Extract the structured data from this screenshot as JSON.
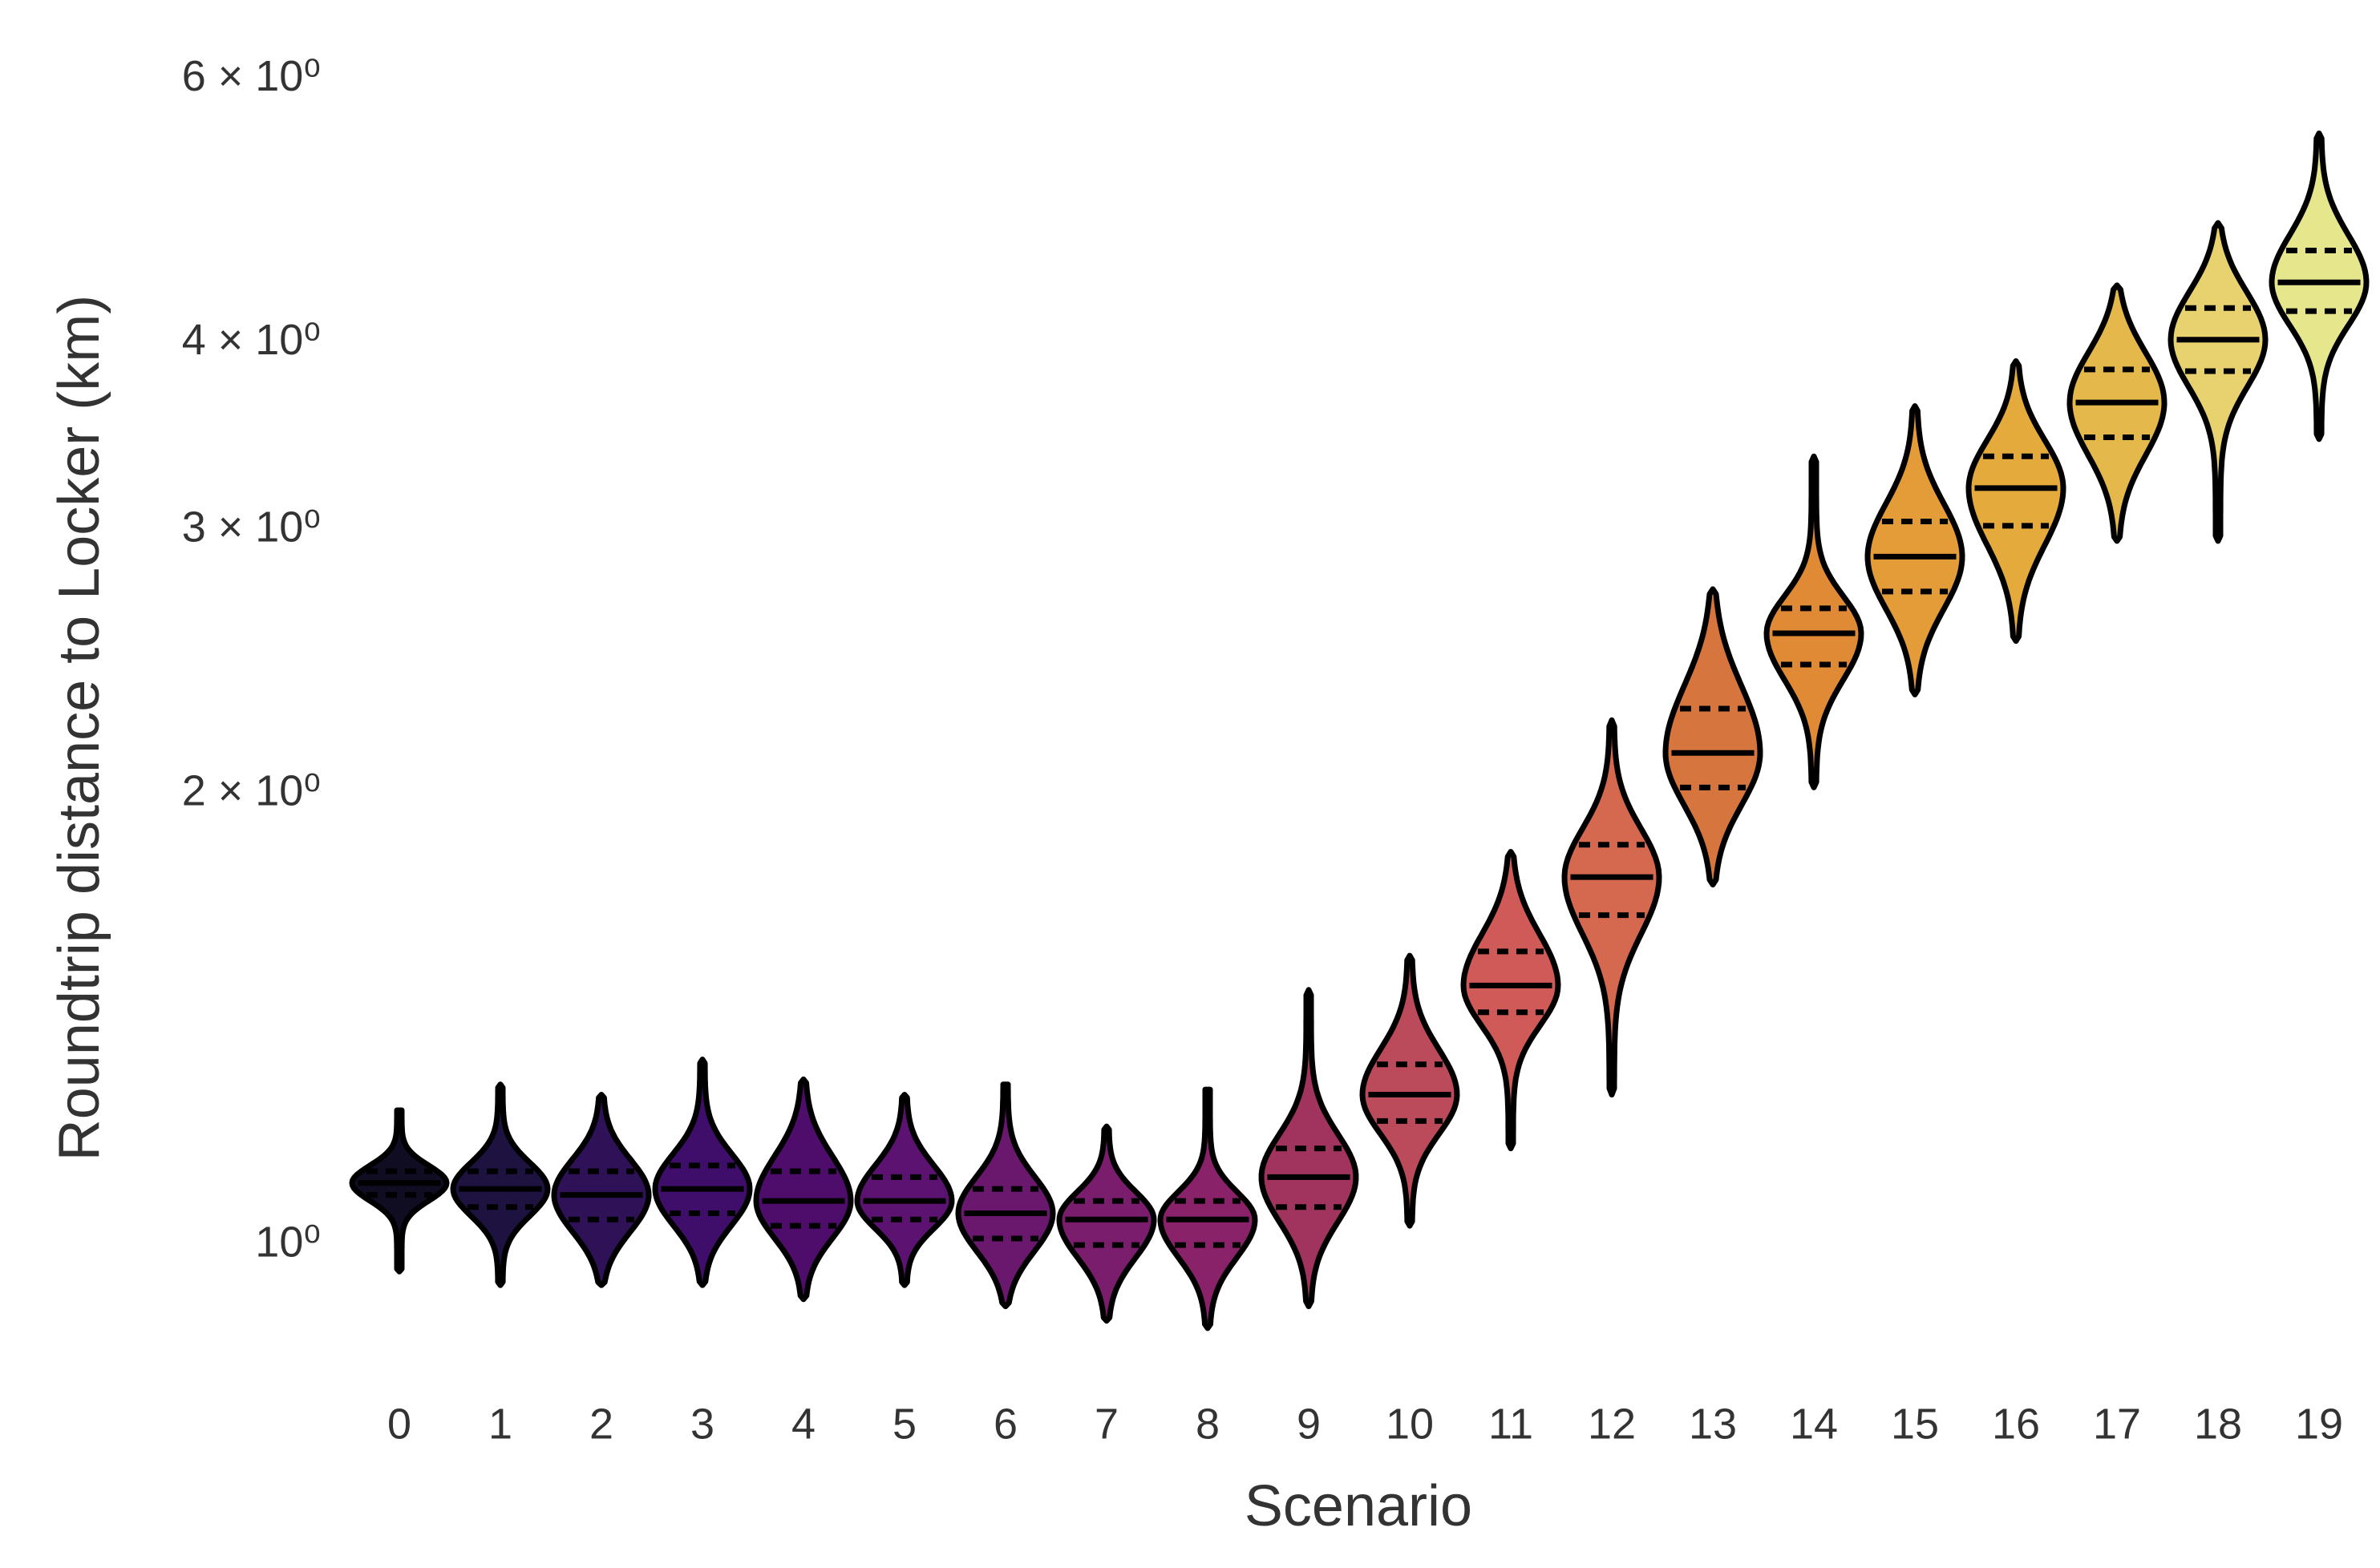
{
  "chart_data": {
    "type": "violin",
    "x_label": "Scenario",
    "y_label": "Roundtrip distance to Locker (km)",
    "y_scale": "log",
    "categories": [
      "0",
      "1",
      "2",
      "3",
      "4",
      "5",
      "6",
      "7",
      "8",
      "9",
      "10",
      "11",
      "12",
      "13",
      "14",
      "15",
      "16",
      "17",
      "18",
      "19"
    ],
    "max": [
      1.23,
      1.28,
      1.26,
      1.33,
      1.29,
      1.26,
      1.28,
      1.2,
      1.27,
      1.48,
      1.56,
      1.83,
      2.24,
      2.74,
      3.36,
      3.63,
      3.89,
      4.37,
      4.81,
      5.52
    ],
    "q3": [
      1.12,
      1.12,
      1.12,
      1.13,
      1.12,
      1.11,
      1.09,
      1.07,
      1.07,
      1.16,
      1.32,
      1.57,
      1.85,
      2.28,
      2.66,
      3.04,
      3.36,
      3.84,
      4.22,
      4.61
    ],
    "median": [
      1.1,
      1.09,
      1.08,
      1.09,
      1.07,
      1.07,
      1.05,
      1.04,
      1.04,
      1.11,
      1.26,
      1.49,
      1.76,
      2.13,
      2.56,
      2.88,
      3.2,
      3.65,
      4.02,
      4.39
    ],
    "q1": [
      1.08,
      1.06,
      1.04,
      1.05,
      1.03,
      1.04,
      1.01,
      1.0,
      1.0,
      1.06,
      1.21,
      1.43,
      1.66,
      2.02,
      2.44,
      2.73,
      3.02,
      3.46,
      3.83,
      4.2
    ],
    "min": [
      0.96,
      0.94,
      0.94,
      0.94,
      0.92,
      0.94,
      0.91,
      0.89,
      0.88,
      0.91,
      1.03,
      1.16,
      1.26,
      1.74,
      2.02,
      2.33,
      2.53,
      2.95,
      2.95,
      3.45
    ],
    "colors": [
      "#100c22",
      "#1e1240",
      "#2e1157",
      "#3e0e6a",
      "#4e0c6b",
      "#5c1270",
      "#6a176e",
      "#7a1d6d",
      "#8a226a",
      "#a0345f",
      "#bb4a5b",
      "#cf5a58",
      "#d46950",
      "#d6763e",
      "#e08a35",
      "#e49c38",
      "#e5aa3c",
      "#e4b84a",
      "#e8d26f",
      "#e6e68c"
    ],
    "ylim": [
      0.85,
      6.2
    ],
    "yticks": [
      {
        "value": 1,
        "label": "10⁰"
      },
      {
        "value": 2,
        "label": "2 × 10⁰"
      },
      {
        "value": 3,
        "label": "3 × 10⁰"
      },
      {
        "value": 4,
        "label": "4 × 10⁰"
      },
      {
        "value": 6,
        "label": "6 × 10⁰"
      }
    ],
    "grid": false
  }
}
